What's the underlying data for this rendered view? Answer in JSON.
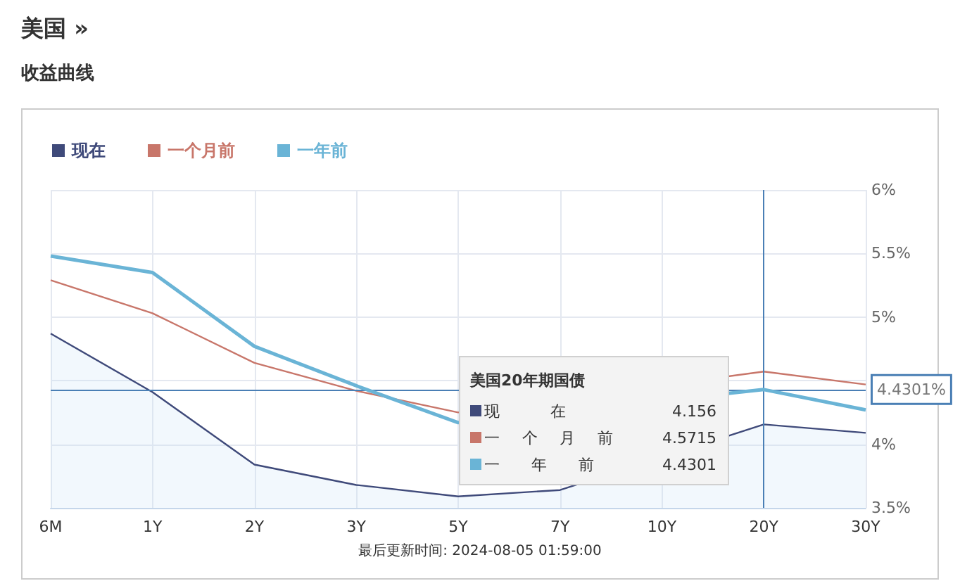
{
  "chart_data": {
    "type": "line",
    "title": "美国 »",
    "subtitle": "收益曲线",
    "categories": [
      "6M",
      "1Y",
      "2Y",
      "3Y",
      "5Y",
      "7Y",
      "10Y",
      "20Y",
      "30Y"
    ],
    "series": [
      {
        "name": "现在",
        "color": "#3f4a7a",
        "type": "area",
        "values": [
          4.87,
          4.41,
          3.84,
          3.68,
          3.59,
          3.64,
          null,
          4.156,
          4.09
        ]
      },
      {
        "name": "一个月前",
        "color": "#c8766a",
        "values": [
          5.29,
          5.03,
          4.64,
          4.42,
          4.25,
          null,
          null,
          4.5715,
          4.47
        ]
      },
      {
        "name": "一年前",
        "color": "#6ab4d6",
        "values": [
          5.48,
          5.35,
          4.77,
          4.46,
          4.17,
          null,
          null,
          4.4301,
          4.27
        ]
      }
    ],
    "ylim": [
      3.5,
      6
    ],
    "yticks": [
      {
        "value": 3.5,
        "label": "3.5%"
      },
      {
        "value": 4,
        "label": "4%"
      },
      {
        "value": 4.5,
        "label": null
      },
      {
        "value": 5,
        "label": "5%"
      },
      {
        "value": 5.5,
        "label": "5.5%"
      },
      {
        "value": 6,
        "label": "6%"
      }
    ],
    "ref_lines": [
      {
        "axis": "x",
        "value": "20Y",
        "color": "#4a7fb5"
      },
      {
        "axis": "y",
        "value": 4.4301,
        "label": "4.4301%",
        "color": "#4a7fb5"
      }
    ],
    "annotations": [
      "美国20年期国债",
      "4.156",
      "4.5715",
      "4.4301",
      "最后更新时间: 2024-08-05 01:59:00"
    ],
    "grid": true,
    "legend": "top left"
  }
}
